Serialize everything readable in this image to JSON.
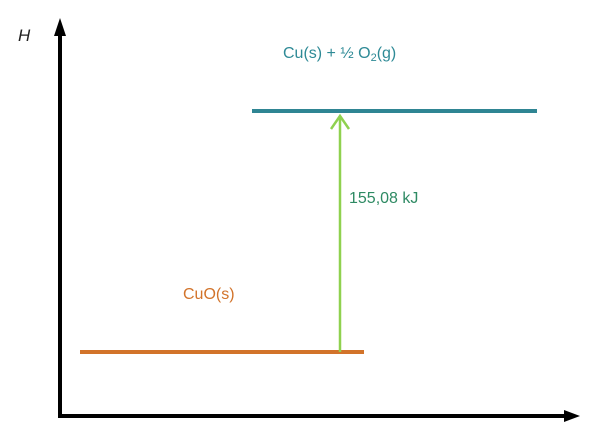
{
  "axis": {
    "y_label": "H"
  },
  "levels": {
    "product": {
      "prefix": "Cu(s) + ½ O",
      "subscript": "2",
      "suffix": "(g)",
      "color": "#2f8593"
    },
    "reactant": {
      "label": "CuO(s)",
      "color": "#d2732a"
    }
  },
  "transition": {
    "label": "155,08 kJ",
    "arrow_color": "#8fd14f",
    "label_color": "#2e8a63"
  }
}
